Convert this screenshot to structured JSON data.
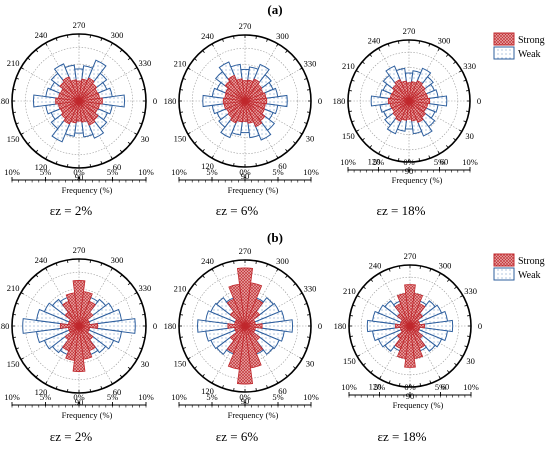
{
  "figure": {
    "panel_labels": [
      "(a)",
      "(b)"
    ]
  },
  "legend": {
    "strong_label": "Strong",
    "weak_label": "Weak"
  },
  "colors": {
    "strong_fill": "#e8a8a8",
    "strong_edge": "#c0282d",
    "weak_fill": "#ffffff",
    "weak_edge": "#2e5f9e",
    "weak_dot": "#3a6db0",
    "circle": "#000000",
    "grid": "#9a9a9a"
  },
  "chart_data": [
    {
      "type": "polar-rose",
      "row": "a",
      "caption": "εz = 2%",
      "xlabel": "Frequency (%)",
      "ticks": [
        "10%",
        "5%",
        "0%",
        "5%",
        "10%"
      ],
      "angle_labels": [
        "270",
        "300",
        "330",
        "0",
        "30",
        "60",
        "90",
        "120",
        "150",
        "180",
        "210",
        "240"
      ],
      "rmax": 10,
      "bin_width_deg": 15,
      "series": [
        {
          "name": "Strong",
          "values": [
            3.5,
            3.1,
            3.0,
            3.6,
            3.9,
            3.2,
            3.0,
            3.3,
            3.7,
            3.3,
            3.0,
            3.1,
            3.5,
            3.1,
            3.0,
            3.6,
            3.9,
            3.2,
            3.0,
            3.3,
            3.7,
            3.3,
            3.0,
            3.1
          ]
        },
        {
          "name": "Weak",
          "values": [
            6.8,
            5.0,
            4.6,
            5.2,
            6.0,
            5.4,
            4.8,
            5.3,
            6.6,
            5.2,
            4.5,
            5.0,
            6.8,
            5.0,
            4.6,
            5.2,
            6.0,
            5.4,
            4.8,
            5.3,
            6.6,
            5.2,
            4.5,
            5.0
          ]
        }
      ]
    },
    {
      "type": "polar-rose",
      "row": "a",
      "caption": "εz = 6%",
      "xlabel": "Frequency (%)",
      "ticks": [
        "10%",
        "5%",
        "0%",
        "5%",
        "10%"
      ],
      "angle_labels": [
        "270",
        "300",
        "330",
        "0",
        "30",
        "60",
        "90",
        "120",
        "150",
        "180",
        "210",
        "240"
      ],
      "rmax": 10,
      "bin_width_deg": 15,
      "series": [
        {
          "name": "Strong",
          "values": [
            3.3,
            3.1,
            3.2,
            3.8,
            4.2,
            3.4,
            3.1,
            3.2,
            3.6,
            3.2,
            3.0,
            3.2,
            3.3,
            3.1,
            3.2,
            3.8,
            4.2,
            3.4,
            3.1,
            3.2,
            3.6,
            3.2,
            3.0,
            3.2
          ]
        },
        {
          "name": "Weak",
          "values": [
            6.4,
            5.0,
            4.6,
            5.6,
            6.4,
            5.6,
            4.8,
            5.2,
            6.0,
            5.0,
            4.6,
            5.0,
            6.4,
            5.0,
            4.6,
            5.6,
            6.4,
            5.6,
            4.8,
            5.2,
            6.0,
            5.0,
            4.6,
            5.0
          ]
        }
      ]
    },
    {
      "type": "polar-rose",
      "row": "a",
      "caption": "εz = 18%",
      "xlabel": "Frequency (%)",
      "ticks": [
        "10%",
        "5%",
        "0%",
        "5%",
        "10%"
      ],
      "angle_labels": [
        "270",
        "300",
        "330",
        "0",
        "30",
        "60",
        "90",
        "120",
        "150",
        "180",
        "210",
        "240"
      ],
      "rmax": 10,
      "bin_width_deg": 15,
      "series": [
        {
          "name": "Strong",
          "values": [
            3.4,
            3.1,
            3.0,
            3.4,
            3.8,
            3.3,
            3.0,
            3.2,
            3.6,
            3.3,
            3.0,
            3.1,
            3.4,
            3.1,
            3.0,
            3.4,
            3.8,
            3.3,
            3.0,
            3.2,
            3.6,
            3.3,
            3.0,
            3.1
          ]
        },
        {
          "name": "Weak",
          "values": [
            6.2,
            4.8,
            4.6,
            5.3,
            6.2,
            5.4,
            4.6,
            5.0,
            5.8,
            5.0,
            4.5,
            4.8,
            6.2,
            4.8,
            4.6,
            5.3,
            6.2,
            5.4,
            4.6,
            5.0,
            5.8,
            5.0,
            4.5,
            4.8
          ]
        }
      ]
    },
    {
      "type": "polar-rose",
      "row": "b",
      "caption": "εz = 2%",
      "xlabel": "Frequency (%)",
      "ticks": [
        "10%",
        "5%",
        "0%",
        "5%",
        "10%"
      ],
      "angle_labels": [
        "270",
        "300",
        "330",
        "0",
        "30",
        "60",
        "90",
        "120",
        "150",
        "180",
        "210",
        "240"
      ],
      "rmax": 10,
      "bin_width_deg": 15,
      "series": [
        {
          "name": "Strong",
          "values": [
            2.8,
            1.6,
            1.6,
            2.6,
            4.0,
            5.0,
            6.8,
            5.2,
            4.0,
            2.6,
            1.6,
            1.6,
            2.8,
            1.6,
            1.6,
            2.6,
            4.0,
            5.0,
            6.8,
            5.2,
            4.0,
            2.6,
            1.6,
            1.6
          ]
        },
        {
          "name": "Weak",
          "values": [
            8.4,
            6.4,
            5.6,
            5.0,
            4.6,
            3.0,
            2.4,
            3.0,
            4.6,
            5.0,
            5.6,
            6.4,
            8.4,
            6.4,
            5.6,
            5.0,
            4.6,
            3.0,
            2.4,
            3.0,
            4.6,
            5.0,
            5.6,
            6.4
          ]
        }
      ]
    },
    {
      "type": "polar-rose",
      "row": "b",
      "caption": "εz = 6%",
      "xlabel": "Frequency (%)",
      "ticks": [
        "10%",
        "5%",
        "0%",
        "5%",
        "10%"
      ],
      "angle_labels": [
        "270",
        "300",
        "330",
        "0",
        "30",
        "60",
        "90",
        "120",
        "150",
        "180",
        "210",
        "240"
      ],
      "rmax": 10,
      "bin_width_deg": 15,
      "series": [
        {
          "name": "Strong",
          "values": [
            2.6,
            1.6,
            1.6,
            2.8,
            4.4,
            6.4,
            8.8,
            6.6,
            4.4,
            2.8,
            1.6,
            1.6,
            2.6,
            1.6,
            1.6,
            2.8,
            4.4,
            6.4,
            8.8,
            6.6,
            4.4,
            2.8,
            1.6,
            1.6
          ]
        },
        {
          "name": "Weak",
          "values": [
            7.2,
            6.0,
            5.6,
            5.4,
            4.6,
            3.2,
            2.4,
            3.2,
            4.6,
            5.4,
            5.6,
            6.0,
            7.2,
            6.0,
            5.6,
            5.4,
            4.6,
            3.2,
            2.4,
            3.2,
            4.6,
            5.4,
            5.6,
            6.0
          ]
        }
      ]
    },
    {
      "type": "polar-rose",
      "row": "b",
      "caption": "εz = 18%",
      "xlabel": "Frequency (%)",
      "ticks": [
        "10%",
        "5%",
        "0%",
        "5%",
        "10%"
      ],
      "angle_labels": [
        "270",
        "300",
        "330",
        "0",
        "30",
        "60",
        "90",
        "120",
        "150",
        "180",
        "210",
        "240"
      ],
      "rmax": 10,
      "bin_width_deg": 15,
      "series": [
        {
          "name": "Strong",
          "values": [
            2.4,
            1.6,
            1.6,
            2.6,
            4.0,
            5.4,
            6.8,
            5.4,
            4.0,
            2.6,
            1.6,
            1.6,
            2.4,
            1.6,
            1.6,
            2.6,
            4.0,
            5.4,
            6.8,
            5.4,
            4.0,
            2.6,
            1.6,
            1.6
          ]
        },
        {
          "name": "Weak",
          "values": [
            7.0,
            6.2,
            5.6,
            5.2,
            4.4,
            3.4,
            2.6,
            3.4,
            4.4,
            5.2,
            5.6,
            6.2,
            7.0,
            6.2,
            5.6,
            5.2,
            4.4,
            3.4,
            2.6,
            3.4,
            4.4,
            5.2,
            5.6,
            6.2
          ]
        }
      ]
    }
  ]
}
